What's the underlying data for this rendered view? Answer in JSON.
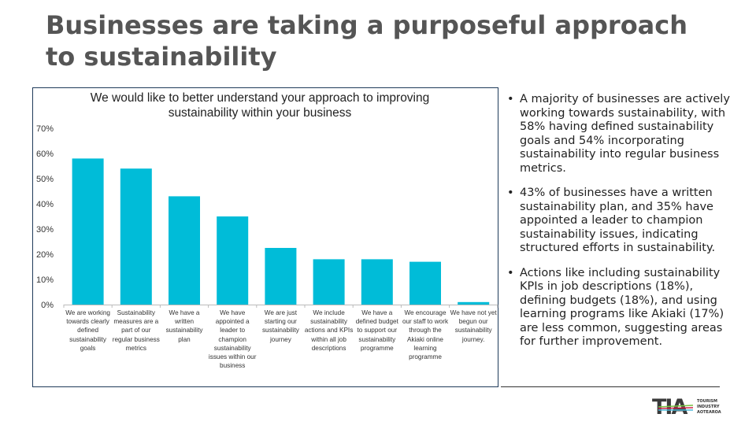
{
  "title": "Businesses are taking a purposeful approach to sustainability",
  "chart_data": {
    "type": "bar",
    "title": "We would like to better understand your approach to improving sustainability within your business",
    "categories": [
      "We are working towards clearly defined sustainability goals",
      "Sustainability measures are a part of our regular business metrics",
      "We have a written sustainability plan",
      "We have appointed a leader to champion sustainability issues within our business",
      "We are just starting our sustainability journey",
      "We include sustainability actions and KPIs within all job descriptions",
      "We have a defined budget to support our sustainability programme",
      "We encourage our staff to work through the Akiaki online learning programme",
      "We have not yet begun our sustainability journey."
    ],
    "values": [
      58,
      54,
      43,
      35,
      22.5,
      18,
      18,
      17,
      1
    ],
    "unit": "%",
    "ylim": [
      0,
      70
    ],
    "yticks": [
      "0%",
      "10%",
      "20%",
      "30%",
      "40%",
      "50%",
      "60%",
      "70%"
    ],
    "grid": false,
    "bar_color": "#00bcd8"
  },
  "bullets": [
    "A majority of businesses are actively working towards sustainability, with 58% having defined sustainability goals and 54% incorporating sustainability into regular business metrics.",
    "43% of businesses have a written sustainability plan, and 35% have appointed a leader to champion sustainability issues, indicating structured efforts in sustainability.",
    "Actions like including sustainability KPIs in job descriptions (18%), defining budgets (18%), and using learning programs like Akiaki (17%) are less common, suggesting areas for further improvement."
  ],
  "logo": {
    "text": "TIA",
    "lines": [
      "TOURISM",
      "INDUSTRY",
      "AOTEAROA"
    ]
  }
}
